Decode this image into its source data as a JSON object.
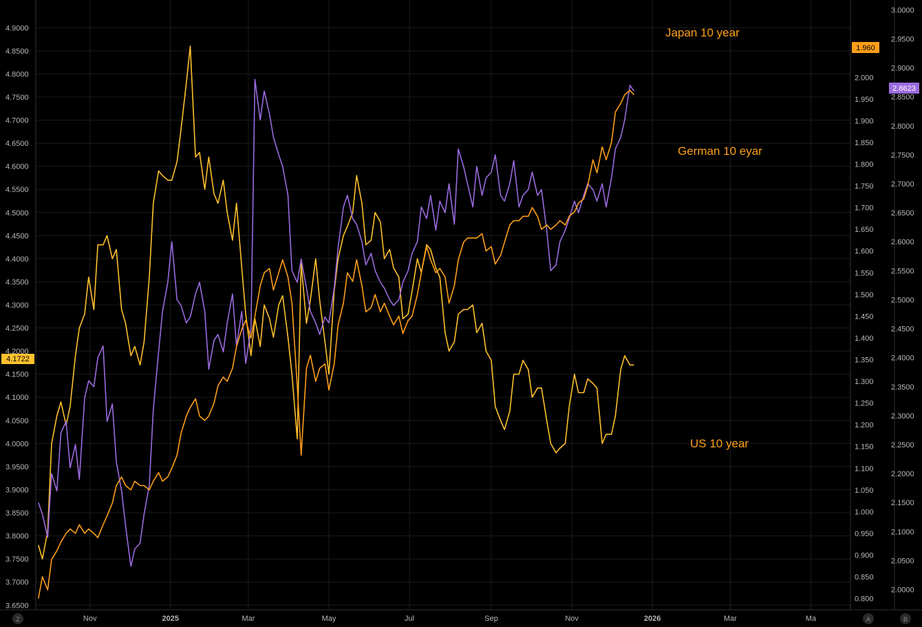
{
  "chart_data": {
    "type": "line",
    "title": "",
    "x_ticks": [
      "Nov",
      "2025",
      "Mar",
      "May",
      "Jul",
      "Sep",
      "Nov",
      "2026",
      "Mar",
      "Ma"
    ],
    "x_range": [
      "2024-09-21",
      "2026-05-31"
    ],
    "axes": {
      "left": {
        "range": [
          3.64,
          4.96
        ],
        "ticks": [
          "3.6500",
          "3.7000",
          "3.7500",
          "3.8000",
          "3.8500",
          "3.9000",
          "3.9500",
          "4.0000",
          "4.0500",
          "4.1000",
          "4.1500",
          "4.2000",
          "4.2500",
          "4.3000",
          "4.3500",
          "4.4000",
          "4.4500",
          "4.5000",
          "4.5500",
          "4.6000",
          "4.6500",
          "4.7000",
          "4.7500",
          "4.8000",
          "4.8500",
          "4.9000"
        ]
      },
      "mid": {
        "range": [
          0.774,
          2.178
        ],
        "ticks": [
          "0.800",
          "0.850",
          "0.900",
          "0.950",
          "1.000",
          "1.050",
          "1.100",
          "1.150",
          "1.200",
          "1.250",
          "1.300",
          "1.350",
          "1.400",
          "1.450",
          "1.500",
          "1.550",
          "1.600",
          "1.650",
          "1.700",
          "1.750",
          "1.800",
          "1.850",
          "1.900",
          "1.950",
          "2.000"
        ]
      },
      "right": {
        "range": [
          1.965,
          3.017
        ],
        "ticks": [
          "2.0000",
          "2.0500",
          "2.1000",
          "2.1500",
          "2.2000",
          "2.2500",
          "2.3000",
          "2.3500",
          "2.4000",
          "2.4500",
          "2.5000",
          "2.5500",
          "2.6000",
          "2.6500",
          "2.7000",
          "2.7500",
          "2.8000",
          "2.8500",
          "2.9000",
          "2.9500",
          "3.0000"
        ]
      }
    },
    "series": [
      {
        "name": "US 10 year",
        "axis": "left",
        "color": "#FFC12E",
        "x": [
          "2024-09-23",
          "2024-09-26",
          "2024-09-30",
          "2024-10-03",
          "2024-10-07",
          "2024-10-10",
          "2024-10-14",
          "2024-10-17",
          "2024-10-21",
          "2024-10-24",
          "2024-10-28",
          "2024-10-31",
          "2024-11-04",
          "2024-11-07",
          "2024-11-11",
          "2024-11-14",
          "2024-11-18",
          "2024-11-21",
          "2024-11-25",
          "2024-11-28",
          "2024-12-02",
          "2024-12-05",
          "2024-12-09",
          "2024-12-12",
          "2024-12-16",
          "2024-12-19",
          "2024-12-23",
          "2024-12-26",
          "2024-12-30",
          "2025-01-02",
          "2025-01-06",
          "2025-01-09",
          "2025-01-13",
          "2025-01-16",
          "2025-01-20",
          "2025-01-23",
          "2025-01-27",
          "2025-01-30",
          "2025-02-03",
          "2025-02-06",
          "2025-02-10",
          "2025-02-13",
          "2025-02-17",
          "2025-02-20",
          "2025-02-24",
          "2025-02-27",
          "2025-03-03",
          "2025-03-06",
          "2025-03-10",
          "2025-03-13",
          "2025-03-17",
          "2025-03-20",
          "2025-03-24",
          "2025-03-27",
          "2025-03-31",
          "2025-04-03",
          "2025-04-07",
          "2025-04-10",
          "2025-04-14",
          "2025-04-17",
          "2025-04-21",
          "2025-04-24",
          "2025-04-28",
          "2025-05-01",
          "2025-05-05",
          "2025-05-08",
          "2025-05-12",
          "2025-05-15",
          "2025-05-19",
          "2025-05-22",
          "2025-05-26",
          "2025-05-29",
          "2025-06-02",
          "2025-06-05",
          "2025-06-09",
          "2025-06-12",
          "2025-06-16",
          "2025-06-19",
          "2025-06-23",
          "2025-06-26",
          "2025-06-30",
          "2025-07-03",
          "2025-07-07",
          "2025-07-10",
          "2025-07-14",
          "2025-07-17",
          "2025-07-21",
          "2025-07-24",
          "2025-07-28",
          "2025-07-31",
          "2025-08-04",
          "2025-08-07",
          "2025-08-11",
          "2025-08-14",
          "2025-08-18",
          "2025-08-21",
          "2025-08-25",
          "2025-08-28",
          "2025-09-01",
          "2025-09-04",
          "2025-09-08",
          "2025-09-11",
          "2025-09-15",
          "2025-09-18",
          "2025-09-22",
          "2025-09-25",
          "2025-09-29",
          "2025-10-02",
          "2025-10-06",
          "2025-10-09",
          "2025-10-13",
          "2025-10-16",
          "2025-10-20",
          "2025-10-23",
          "2025-10-27",
          "2025-10-30",
          "2025-11-03",
          "2025-11-06",
          "2025-11-10",
          "2025-11-13",
          "2025-11-17",
          "2025-11-20",
          "2025-11-24",
          "2025-11-27",
          "2025-12-01",
          "2025-12-04",
          "2025-12-08",
          "2025-12-11",
          "2025-12-15",
          "2025-12-18"
        ],
        "y": [
          3.78,
          3.75,
          3.81,
          4.0,
          4.06,
          4.09,
          4.04,
          4.08,
          4.19,
          4.25,
          4.28,
          4.36,
          4.29,
          4.43,
          4.43,
          4.45,
          4.4,
          4.42,
          4.29,
          4.26,
          4.19,
          4.21,
          4.17,
          4.22,
          4.36,
          4.52,
          4.59,
          4.58,
          4.57,
          4.57,
          4.61,
          4.68,
          4.78,
          4.86,
          4.62,
          4.63,
          4.55,
          4.62,
          4.54,
          4.52,
          4.57,
          4.5,
          4.44,
          4.52,
          4.38,
          4.28,
          4.19,
          4.27,
          4.21,
          4.3,
          4.27,
          4.23,
          4.3,
          4.32,
          4.23,
          4.15,
          4.01,
          4.39,
          4.26,
          4.31,
          4.4,
          4.31,
          4.22,
          4.15,
          4.33,
          4.4,
          4.45,
          4.47,
          4.5,
          4.58,
          4.52,
          4.43,
          4.44,
          4.5,
          4.48,
          4.4,
          4.42,
          4.38,
          4.36,
          4.27,
          4.28,
          4.33,
          4.4,
          4.37,
          4.43,
          4.42,
          4.38,
          4.36,
          4.24,
          4.2,
          4.22,
          4.28,
          4.29,
          4.29,
          4.3,
          4.24,
          4.26,
          4.2,
          4.18,
          4.08,
          4.05,
          4.03,
          4.07,
          4.15,
          4.15,
          4.18,
          4.16,
          4.1,
          4.12,
          4.12,
          4.05,
          4.0,
          3.98,
          3.99,
          4.0,
          4.08,
          4.15,
          4.11,
          4.11,
          4.14,
          4.13,
          4.12,
          4.0,
          4.02,
          4.02,
          4.06,
          4.16,
          4.19,
          4.17,
          4.17
        ]
      },
      {
        "name": "German 10 eyar",
        "axis": "right",
        "color": "#9B6BDF",
        "x": [
          "2024-09-23",
          "2024-09-26",
          "2024-09-30",
          "2024-10-03",
          "2024-10-07",
          "2024-10-10",
          "2024-10-14",
          "2024-10-17",
          "2024-10-21",
          "2024-10-24",
          "2024-10-28",
          "2024-10-31",
          "2024-11-04",
          "2024-11-07",
          "2024-11-11",
          "2024-11-14",
          "2024-11-18",
          "2024-11-21",
          "2024-11-25",
          "2024-11-28",
          "2024-12-02",
          "2024-12-05",
          "2024-12-09",
          "2024-12-12",
          "2024-12-16",
          "2024-12-19",
          "2024-12-23",
          "2024-12-26",
          "2024-12-30",
          "2025-01-02",
          "2025-01-06",
          "2025-01-09",
          "2025-01-13",
          "2025-01-16",
          "2025-01-20",
          "2025-01-23",
          "2025-01-27",
          "2025-01-30",
          "2025-02-03",
          "2025-02-06",
          "2025-02-10",
          "2025-02-13",
          "2025-02-17",
          "2025-02-20",
          "2025-02-24",
          "2025-02-27",
          "2025-03-03",
          "2025-03-06",
          "2025-03-10",
          "2025-03-13",
          "2025-03-17",
          "2025-03-20",
          "2025-03-24",
          "2025-03-27",
          "2025-03-31",
          "2025-04-03",
          "2025-04-07",
          "2025-04-10",
          "2025-04-14",
          "2025-04-17",
          "2025-04-21",
          "2025-04-24",
          "2025-04-28",
          "2025-05-01",
          "2025-05-05",
          "2025-05-08",
          "2025-05-12",
          "2025-05-15",
          "2025-05-19",
          "2025-05-22",
          "2025-05-26",
          "2025-05-29",
          "2025-06-02",
          "2025-06-05",
          "2025-06-09",
          "2025-06-12",
          "2025-06-16",
          "2025-06-19",
          "2025-06-23",
          "2025-06-26",
          "2025-06-30",
          "2025-07-03",
          "2025-07-07",
          "2025-07-10",
          "2025-07-14",
          "2025-07-17",
          "2025-07-21",
          "2025-07-24",
          "2025-07-28",
          "2025-07-31",
          "2025-08-04",
          "2025-08-07",
          "2025-08-11",
          "2025-08-14",
          "2025-08-18",
          "2025-08-21",
          "2025-08-25",
          "2025-08-28",
          "2025-09-01",
          "2025-09-04",
          "2025-09-08",
          "2025-09-11",
          "2025-09-15",
          "2025-09-18",
          "2025-09-22",
          "2025-09-25",
          "2025-09-29",
          "2025-10-02",
          "2025-10-06",
          "2025-10-09",
          "2025-10-13",
          "2025-10-16",
          "2025-10-20",
          "2025-10-23",
          "2025-10-27",
          "2025-10-30",
          "2025-11-03",
          "2025-11-06",
          "2025-11-10",
          "2025-11-13",
          "2025-11-17",
          "2025-11-20",
          "2025-11-24",
          "2025-11-27",
          "2025-12-01",
          "2025-12-04",
          "2025-12-08",
          "2025-12-11",
          "2025-12-15",
          "2025-12-18"
        ],
        "y": [
          2.15,
          2.13,
          2.09,
          2.2,
          2.17,
          2.27,
          2.29,
          2.21,
          2.25,
          2.19,
          2.33,
          2.36,
          2.35,
          2.4,
          2.42,
          2.29,
          2.32,
          2.22,
          2.17,
          2.11,
          2.04,
          2.07,
          2.08,
          2.13,
          2.18,
          2.31,
          2.41,
          2.48,
          2.53,
          2.6,
          2.5,
          2.49,
          2.46,
          2.47,
          2.51,
          2.53,
          2.48,
          2.38,
          2.43,
          2.44,
          2.41,
          2.46,
          2.51,
          2.42,
          2.48,
          2.39,
          2.45,
          2.88,
          2.81,
          2.86,
          2.82,
          2.78,
          2.75,
          2.73,
          2.68,
          2.55,
          2.53,
          2.57,
          2.52,
          2.48,
          2.46,
          2.44,
          2.47,
          2.46,
          2.52,
          2.59,
          2.66,
          2.68,
          2.64,
          2.63,
          2.6,
          2.56,
          2.58,
          2.55,
          2.53,
          2.52,
          2.5,
          2.49,
          2.5,
          2.53,
          2.55,
          2.58,
          2.6,
          2.66,
          2.64,
          2.68,
          2.62,
          2.67,
          2.65,
          2.7,
          2.63,
          2.76,
          2.73,
          2.7,
          2.66,
          2.73,
          2.68,
          2.71,
          2.72,
          2.75,
          2.68,
          2.67,
          2.7,
          2.74,
          2.66,
          2.68,
          2.69,
          2.72,
          2.68,
          2.69,
          2.62,
          2.55,
          2.56,
          2.6,
          2.62,
          2.64,
          2.67,
          2.65,
          2.68,
          2.7,
          2.69,
          2.67,
          2.7,
          2.66,
          2.71,
          2.76,
          2.78,
          2.81,
          2.87,
          2.86
        ]
      },
      {
        "name": "Japan 10 year",
        "axis": "mid",
        "color": "#FF9F1A",
        "x": [
          "2024-09-23",
          "2024-09-26",
          "2024-09-30",
          "2024-10-03",
          "2024-10-07",
          "2024-10-10",
          "2024-10-14",
          "2024-10-17",
          "2024-10-21",
          "2024-10-24",
          "2024-10-28",
          "2024-10-31",
          "2024-11-04",
          "2024-11-07",
          "2024-11-11",
          "2024-11-14",
          "2024-11-18",
          "2024-11-21",
          "2024-11-25",
          "2024-11-28",
          "2024-12-02",
          "2024-12-05",
          "2024-12-09",
          "2024-12-12",
          "2024-12-16",
          "2024-12-19",
          "2024-12-23",
          "2024-12-26",
          "2024-12-30",
          "2025-01-02",
          "2025-01-06",
          "2025-01-09",
          "2025-01-13",
          "2025-01-16",
          "2025-01-20",
          "2025-01-23",
          "2025-01-27",
          "2025-01-30",
          "2025-02-03",
          "2025-02-06",
          "2025-02-10",
          "2025-02-13",
          "2025-02-17",
          "2025-02-20",
          "2025-02-24",
          "2025-02-27",
          "2025-03-03",
          "2025-03-06",
          "2025-03-10",
          "2025-03-13",
          "2025-03-17",
          "2025-03-20",
          "2025-03-24",
          "2025-03-27",
          "2025-03-31",
          "2025-04-03",
          "2025-04-07",
          "2025-04-10",
          "2025-04-14",
          "2025-04-17",
          "2025-04-21",
          "2025-04-24",
          "2025-04-28",
          "2025-05-01",
          "2025-05-05",
          "2025-05-08",
          "2025-05-12",
          "2025-05-15",
          "2025-05-19",
          "2025-05-22",
          "2025-05-26",
          "2025-05-29",
          "2025-06-02",
          "2025-06-05",
          "2025-06-09",
          "2025-06-12",
          "2025-06-16",
          "2025-06-19",
          "2025-06-23",
          "2025-06-26",
          "2025-06-30",
          "2025-07-03",
          "2025-07-07",
          "2025-07-10",
          "2025-07-14",
          "2025-07-17",
          "2025-07-21",
          "2025-07-24",
          "2025-07-28",
          "2025-07-31",
          "2025-08-04",
          "2025-08-07",
          "2025-08-11",
          "2025-08-14",
          "2025-08-18",
          "2025-08-21",
          "2025-08-25",
          "2025-08-28",
          "2025-09-01",
          "2025-09-04",
          "2025-09-08",
          "2025-09-11",
          "2025-09-15",
          "2025-09-18",
          "2025-09-22",
          "2025-09-25",
          "2025-09-29",
          "2025-10-02",
          "2025-10-06",
          "2025-10-09",
          "2025-10-13",
          "2025-10-16",
          "2025-10-20",
          "2025-10-23",
          "2025-10-27",
          "2025-10-30",
          "2025-11-03",
          "2025-11-06",
          "2025-11-10",
          "2025-11-13",
          "2025-11-17",
          "2025-11-20",
          "2025-11-24",
          "2025-11-27",
          "2025-12-01",
          "2025-12-04",
          "2025-12-08",
          "2025-12-11",
          "2025-12-15",
          "2025-12-18"
        ],
        "y": [
          0.8,
          0.85,
          0.82,
          0.89,
          0.91,
          0.93,
          0.95,
          0.96,
          0.95,
          0.97,
          0.95,
          0.96,
          0.95,
          0.94,
          0.97,
          0.99,
          1.02,
          1.06,
          1.08,
          1.06,
          1.05,
          1.07,
          1.06,
          1.06,
          1.05,
          1.07,
          1.09,
          1.07,
          1.08,
          1.1,
          1.13,
          1.18,
          1.22,
          1.24,
          1.26,
          1.22,
          1.21,
          1.22,
          1.25,
          1.29,
          1.31,
          1.3,
          1.33,
          1.38,
          1.42,
          1.44,
          1.4,
          1.45,
          1.52,
          1.55,
          1.56,
          1.51,
          1.55,
          1.58,
          1.54,
          1.48,
          1.29,
          1.13,
          1.33,
          1.36,
          1.3,
          1.33,
          1.34,
          1.28,
          1.34,
          1.43,
          1.48,
          1.55,
          1.53,
          1.58,
          1.52,
          1.46,
          1.47,
          1.5,
          1.46,
          1.48,
          1.45,
          1.43,
          1.45,
          1.41,
          1.44,
          1.45,
          1.5,
          1.55,
          1.61,
          1.58,
          1.55,
          1.56,
          1.54,
          1.48,
          1.52,
          1.58,
          1.62,
          1.63,
          1.63,
          1.63,
          1.64,
          1.6,
          1.61,
          1.57,
          1.59,
          1.62,
          1.66,
          1.67,
          1.67,
          1.68,
          1.68,
          1.7,
          1.68,
          1.65,
          1.66,
          1.65,
          1.66,
          1.67,
          1.66,
          1.68,
          1.69,
          1.71,
          1.72,
          1.75,
          1.81,
          1.78,
          1.84,
          1.81,
          1.85,
          1.92,
          1.94,
          1.96,
          1.97,
          1.96
        ]
      }
    ],
    "series_labels": {
      "japan": "Japan 10 year",
      "german": "German 10 eyar",
      "us": "US 10 year"
    },
    "last_values": {
      "us": "4.1722",
      "german": "2.8623",
      "japan": "1.960"
    },
    "corner_buttons": {
      "left": "Z",
      "right_a": "A",
      "right_b": "B"
    },
    "grid": true,
    "background": "#000000",
    "grid_color": "#1c1c1c"
  }
}
